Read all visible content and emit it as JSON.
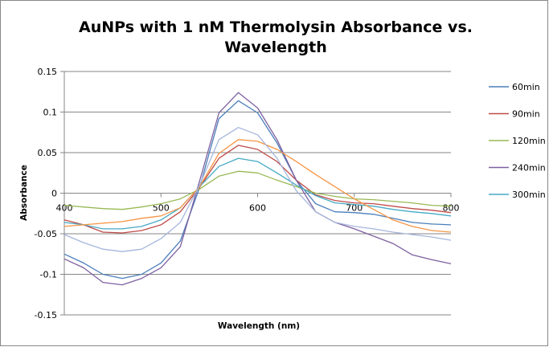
{
  "chart_data": {
    "type": "line",
    "title": "AuNPs with 1 nM Thermolysin Absorbance vs. Wavelength",
    "title_lines": [
      "AuNPs with 1 nM Thermolysin Absorbance vs.",
      "Wavelength"
    ],
    "xlabel": "Wavelength (nm)",
    "ylabel": "Absorbance",
    "xlim": [
      400,
      800
    ],
    "ylim": [
      -0.15,
      0.15
    ],
    "xticks": [
      "400",
      "500",
      "600",
      "700",
      "800"
    ],
    "xtick_values": [
      400,
      500,
      600,
      700,
      800
    ],
    "yticks": [
      "0.15",
      "0.1",
      "0.05",
      "0",
      "-0.05",
      "-0.1",
      "-0.15"
    ],
    "ytick_values": [
      0.15,
      0.1,
      0.05,
      0,
      -0.05,
      -0.1,
      -0.15
    ],
    "grid": "horizontal",
    "legend_placement": "right",
    "x": [
      400,
      420,
      440,
      460,
      480,
      500,
      520,
      540,
      560,
      580,
      600,
      620,
      640,
      660,
      680,
      700,
      720,
      740,
      760,
      780,
      800
    ],
    "series": [
      {
        "name": "60min",
        "color": "#4A7EBB",
        "in_legend": true,
        "values": [
          -0.075,
          -0.086,
          -0.1,
          -0.105,
          -0.1,
          -0.086,
          -0.059,
          0.007,
          0.092,
          0.114,
          0.099,
          0.062,
          0.016,
          -0.013,
          -0.023,
          -0.024,
          -0.026,
          -0.031,
          -0.036,
          -0.038,
          -0.039
        ]
      },
      {
        "name": "90min",
        "color": "#BE4B48",
        "in_legend": true,
        "values": [
          -0.033,
          -0.039,
          -0.048,
          -0.049,
          -0.046,
          -0.039,
          -0.023,
          0.007,
          0.043,
          0.059,
          0.054,
          0.039,
          0.016,
          -0.002,
          -0.009,
          -0.012,
          -0.013,
          -0.016,
          -0.019,
          -0.021,
          -0.024
        ]
      },
      {
        "name": "120min",
        "color": "#98B954",
        "in_legend": true,
        "values": [
          -0.015,
          -0.017,
          -0.019,
          -0.02,
          -0.017,
          -0.013,
          -0.007,
          0.005,
          0.021,
          0.027,
          0.025,
          0.016,
          0.008,
          0.0,
          -0.004,
          -0.007,
          -0.008,
          -0.01,
          -0.012,
          -0.015,
          -0.016
        ]
      },
      {
        "name": "240min",
        "color": "#7D60A0",
        "in_legend": true,
        "values": [
          -0.081,
          -0.092,
          -0.11,
          -0.113,
          -0.105,
          -0.092,
          -0.066,
          0.015,
          0.099,
          0.124,
          0.105,
          0.066,
          0.016,
          -0.023,
          -0.036,
          -0.044,
          -0.053,
          -0.062,
          -0.076,
          -0.082,
          -0.087
        ]
      },
      {
        "name": "300min",
        "color": "#46AAC5",
        "in_legend": true,
        "values": [
          -0.036,
          -0.039,
          -0.044,
          -0.044,
          -0.041,
          -0.033,
          -0.018,
          0.008,
          0.033,
          0.043,
          0.039,
          0.025,
          0.01,
          -0.003,
          -0.012,
          -0.014,
          -0.016,
          -0.02,
          -0.023,
          -0.025,
          -0.028
        ]
      },
      {
        "name": "",
        "color": "#F69544",
        "in_legend": false,
        "values": [
          -0.041,
          -0.039,
          -0.037,
          -0.035,
          -0.031,
          -0.028,
          -0.018,
          0.008,
          0.049,
          0.066,
          0.064,
          0.054,
          0.039,
          0.023,
          0.008,
          -0.007,
          -0.02,
          -0.033,
          -0.041,
          -0.046,
          -0.048
        ]
      },
      {
        "name": "",
        "color": "#A5B6DC",
        "in_legend": false,
        "values": [
          -0.051,
          -0.061,
          -0.069,
          -0.072,
          -0.069,
          -0.056,
          -0.036,
          0.01,
          0.066,
          0.081,
          0.072,
          0.043,
          0.003,
          -0.023,
          -0.036,
          -0.041,
          -0.044,
          -0.048,
          -0.051,
          -0.054,
          -0.058
        ]
      }
    ]
  }
}
